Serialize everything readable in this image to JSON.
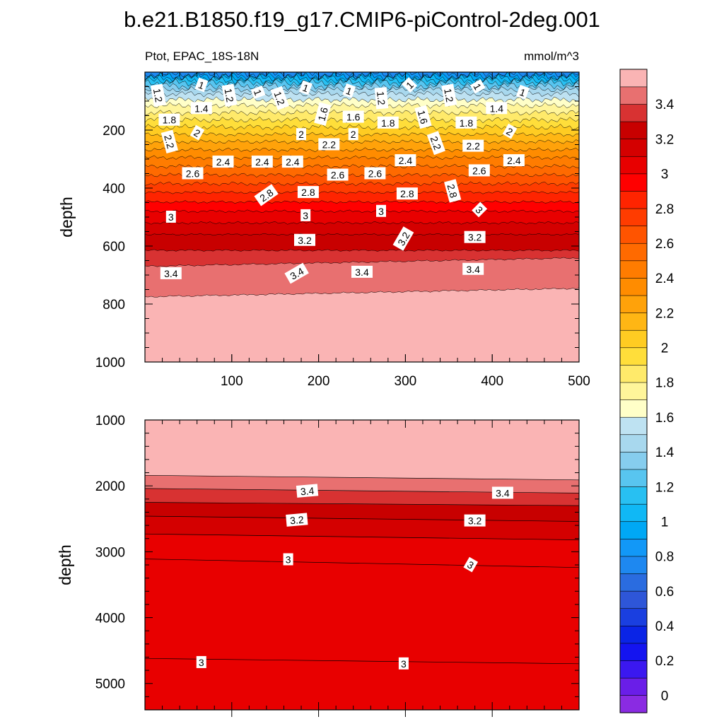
{
  "chart_data": {
    "type": "heatmap",
    "title": "b.e21.B1850.f19_g17.CMIP6-piControl-2deg.001",
    "subtitle_left": "Ptot, EPAC_18S-18N",
    "subtitle_right": "mmol/m^3",
    "colorbar": {
      "levels": [
        0,
        0.1,
        0.2,
        0.3,
        0.4,
        0.5,
        0.6,
        0.7,
        0.8,
        0.9,
        1.0,
        1.1,
        1.2,
        1.3,
        1.4,
        1.5,
        1.6,
        1.7,
        1.8,
        1.9,
        2.0,
        2.1,
        2.2,
        2.3,
        2.4,
        2.5,
        2.6,
        2.7,
        2.8,
        2.9,
        3.0,
        3.1,
        3.2,
        3.3,
        3.4,
        3.5
      ],
      "colors": [
        "#8a2be2",
        "#6a1ee8",
        "#3b18f0",
        "#1414f0",
        "#0a24e6",
        "#1a3fe0",
        "#2e56d8",
        "#2a6ce0",
        "#1e88f0",
        "#1298f7",
        "#00a8f5",
        "#10b8f5",
        "#28c0f2",
        "#58c5f0",
        "#86cdee",
        "#a8d8ee",
        "#bee2f2",
        "#ffffc8",
        "#fff59a",
        "#ffea6a",
        "#ffde3a",
        "#ffcc22",
        "#ffb614",
        "#ffa20a",
        "#ff8c00",
        "#ff7c00",
        "#ff6a00",
        "#ff5400",
        "#ff3c00",
        "#ff2400",
        "#ff0000",
        "#e80000",
        "#d40000",
        "#c80000",
        "#d83232",
        "#e87070",
        "#fab4b4"
      ],
      "tick_labels": [
        "0",
        "0.2",
        "0.4",
        "0.6",
        "0.8",
        "1",
        "1.2",
        "1.4",
        "1.6",
        "1.8",
        "2",
        "2.2",
        "2.4",
        "2.6",
        "2.8",
        "3",
        "3.2",
        "3.4"
      ]
    },
    "panels": [
      {
        "name": "upper",
        "ylabel": "depth",
        "xlim": [
          0,
          500
        ],
        "ylim": [
          1000,
          0
        ],
        "x_ticks": [
          100,
          200,
          300,
          400,
          500
        ],
        "y_ticks": [
          200,
          400,
          600,
          800,
          1000
        ],
        "contour_depths": [
          {
            "level": 0.8,
            "depth": 8
          },
          {
            "level": 0.9,
            "depth": 14
          },
          {
            "level": 1.0,
            "depth": 20
          },
          {
            "level": 1.1,
            "depth": 28
          },
          {
            "level": 1.2,
            "depth": 36
          },
          {
            "level": 1.3,
            "depth": 48
          },
          {
            "level": 1.4,
            "depth": 60
          },
          {
            "level": 1.5,
            "depth": 75
          },
          {
            "level": 1.6,
            "depth": 95
          },
          {
            "level": 1.7,
            "depth": 115
          },
          {
            "level": 1.8,
            "depth": 140
          },
          {
            "level": 1.9,
            "depth": 165
          },
          {
            "level": 2.0,
            "depth": 190
          },
          {
            "level": 2.1,
            "depth": 215
          },
          {
            "level": 2.2,
            "depth": 240
          },
          {
            "level": 2.3,
            "depth": 268
          },
          {
            "level": 2.4,
            "depth": 295
          },
          {
            "level": 2.5,
            "depth": 325
          },
          {
            "level": 2.6,
            "depth": 355
          },
          {
            "level": 2.7,
            "depth": 385
          },
          {
            "level": 2.8,
            "depth": 415
          },
          {
            "level": 2.9,
            "depth": 448
          },
          {
            "level": 3.0,
            "depth": 480
          },
          {
            "level": 3.1,
            "depth": 520
          },
          {
            "level": 3.2,
            "depth": 560
          },
          {
            "level": 3.3,
            "depth": 615
          },
          {
            "level": 3.4,
            "depth": 670
          },
          {
            "level": 3.5,
            "depth": 775
          }
        ],
        "contour_labels": [
          {
            "text": "1.2",
            "x": 15,
            "depth": 80,
            "angle": 80
          },
          {
            "text": "1",
            "x": 65,
            "depth": 45,
            "angle": 20
          },
          {
            "text": "1.2",
            "x": 97,
            "depth": 80,
            "angle": 80
          },
          {
            "text": "1",
            "x": 130,
            "depth": 70,
            "angle": 70
          },
          {
            "text": "1.2",
            "x": 155,
            "depth": 90,
            "angle": 70
          },
          {
            "text": "1",
            "x": 185,
            "depth": 55,
            "angle": 20
          },
          {
            "text": "1",
            "x": 235,
            "depth": 65,
            "angle": 20
          },
          {
            "text": "1.2",
            "x": 272,
            "depth": 90,
            "angle": 85
          },
          {
            "text": "1",
            "x": 305,
            "depth": 45,
            "angle": -45
          },
          {
            "text": "1.2",
            "x": 350,
            "depth": 80,
            "angle": 80
          },
          {
            "text": "1",
            "x": 383,
            "depth": 50,
            "angle": 60
          },
          {
            "text": "1",
            "x": 435,
            "depth": 70,
            "angle": 20
          },
          {
            "text": "1.4",
            "x": 65,
            "depth": 125,
            "angle": 0
          },
          {
            "text": "1.4",
            "x": 405,
            "depth": 125,
            "angle": 0
          },
          {
            "text": "1.6",
            "x": 205,
            "depth": 145,
            "angle": -75
          },
          {
            "text": "1.6",
            "x": 240,
            "depth": 155,
            "angle": 0
          },
          {
            "text": "1.6",
            "x": 320,
            "depth": 155,
            "angle": 75
          },
          {
            "text": "1.8",
            "x": 28,
            "depth": 165,
            "angle": 0
          },
          {
            "text": "1.8",
            "x": 280,
            "depth": 175,
            "angle": 0
          },
          {
            "text": "1.8",
            "x": 370,
            "depth": 175,
            "angle": 0
          },
          {
            "text": "2",
            "x": 60,
            "depth": 210,
            "angle": 30
          },
          {
            "text": "2",
            "x": 180,
            "depth": 215,
            "angle": 0
          },
          {
            "text": "2",
            "x": 240,
            "depth": 215,
            "angle": 0
          },
          {
            "text": "2",
            "x": 420,
            "depth": 205,
            "angle": 30
          },
          {
            "text": "2.2",
            "x": 28,
            "depth": 240,
            "angle": 75
          },
          {
            "text": "2.2",
            "x": 212,
            "depth": 250,
            "angle": 0
          },
          {
            "text": "2.2",
            "x": 335,
            "depth": 245,
            "angle": 70
          },
          {
            "text": "2.2",
            "x": 378,
            "depth": 255,
            "angle": 0
          },
          {
            "text": "2.4",
            "x": 90,
            "depth": 310,
            "angle": 0
          },
          {
            "text": "2.4",
            "x": 135,
            "depth": 310,
            "angle": 0
          },
          {
            "text": "2.4",
            "x": 170,
            "depth": 310,
            "angle": 0
          },
          {
            "text": "2.4",
            "x": 300,
            "depth": 305,
            "angle": 0
          },
          {
            "text": "2.4",
            "x": 425,
            "depth": 305,
            "angle": 0
          },
          {
            "text": "2.6",
            "x": 55,
            "depth": 350,
            "angle": 0
          },
          {
            "text": "2.6",
            "x": 222,
            "depth": 355,
            "angle": 0
          },
          {
            "text": "2.6",
            "x": 265,
            "depth": 350,
            "angle": 0
          },
          {
            "text": "2.6",
            "x": 385,
            "depth": 340,
            "angle": 0
          },
          {
            "text": "2.8",
            "x": 140,
            "depth": 425,
            "angle": -35
          },
          {
            "text": "2.8",
            "x": 188,
            "depth": 415,
            "angle": 0
          },
          {
            "text": "2.8",
            "x": 302,
            "depth": 420,
            "angle": 0
          },
          {
            "text": "2.8",
            "x": 354,
            "depth": 410,
            "angle": 75
          },
          {
            "text": "3",
            "x": 30,
            "depth": 500,
            "angle": 0
          },
          {
            "text": "3",
            "x": 185,
            "depth": 495,
            "angle": 0
          },
          {
            "text": "3",
            "x": 272,
            "depth": 480,
            "angle": 0
          },
          {
            "text": "3",
            "x": 385,
            "depth": 475,
            "angle": 45
          },
          {
            "text": "3.2",
            "x": 184,
            "depth": 580,
            "angle": 0
          },
          {
            "text": "3.2",
            "x": 298,
            "depth": 575,
            "angle": -60
          },
          {
            "text": "3.2",
            "x": 380,
            "depth": 570,
            "angle": 0
          },
          {
            "text": "3.4",
            "x": 30,
            "depth": 695,
            "angle": 0
          },
          {
            "text": "3.4",
            "x": 175,
            "depth": 695,
            "angle": -30
          },
          {
            "text": "3.4",
            "x": 250,
            "depth": 690,
            "angle": 0
          },
          {
            "text": "3.4",
            "x": 378,
            "depth": 680,
            "angle": 0
          }
        ]
      },
      {
        "name": "lower",
        "ylabel": "depth",
        "xlim": [
          0,
          500
        ],
        "ylim": [
          5400,
          1000
        ],
        "y_ticks": [
          1000,
          2000,
          3000,
          4000,
          5000
        ],
        "contour_lines": [
          {
            "level": 3.5,
            "depth_left": 1840,
            "depth_right": 1910
          },
          {
            "level": 3.4,
            "depth_left": 2040,
            "depth_right": 2110
          },
          {
            "level": 3.3,
            "depth_left": 2250,
            "depth_right": 2300
          },
          {
            "level": 3.2,
            "depth_left": 2460,
            "depth_right": 2540
          },
          {
            "level": 3.1,
            "depth_left": 2730,
            "depth_right": 2820
          },
          {
            "level": 3.0,
            "depth_left": 3110,
            "depth_right": 3240
          },
          {
            "level": 3.0,
            "depth_left": 4620,
            "depth_right": 4700
          }
        ],
        "contour_labels": [
          {
            "text": "3.4",
            "x": 187,
            "depth": 2080,
            "angle": -5
          },
          {
            "text": "3.4",
            "x": 412,
            "depth": 2110,
            "angle": 0
          },
          {
            "text": "3.2",
            "x": 175,
            "depth": 2520,
            "angle": -5
          },
          {
            "text": "3.2",
            "x": 380,
            "depth": 2530,
            "angle": 0
          },
          {
            "text": "3",
            "x": 165,
            "depth": 3120,
            "angle": 0
          },
          {
            "text": "3",
            "x": 375,
            "depth": 3200,
            "angle": 30
          },
          {
            "text": "3",
            "x": 65,
            "depth": 4680,
            "angle": 0
          },
          {
            "text": "3",
            "x": 298,
            "depth": 4700,
            "angle": 0
          }
        ]
      }
    ]
  }
}
